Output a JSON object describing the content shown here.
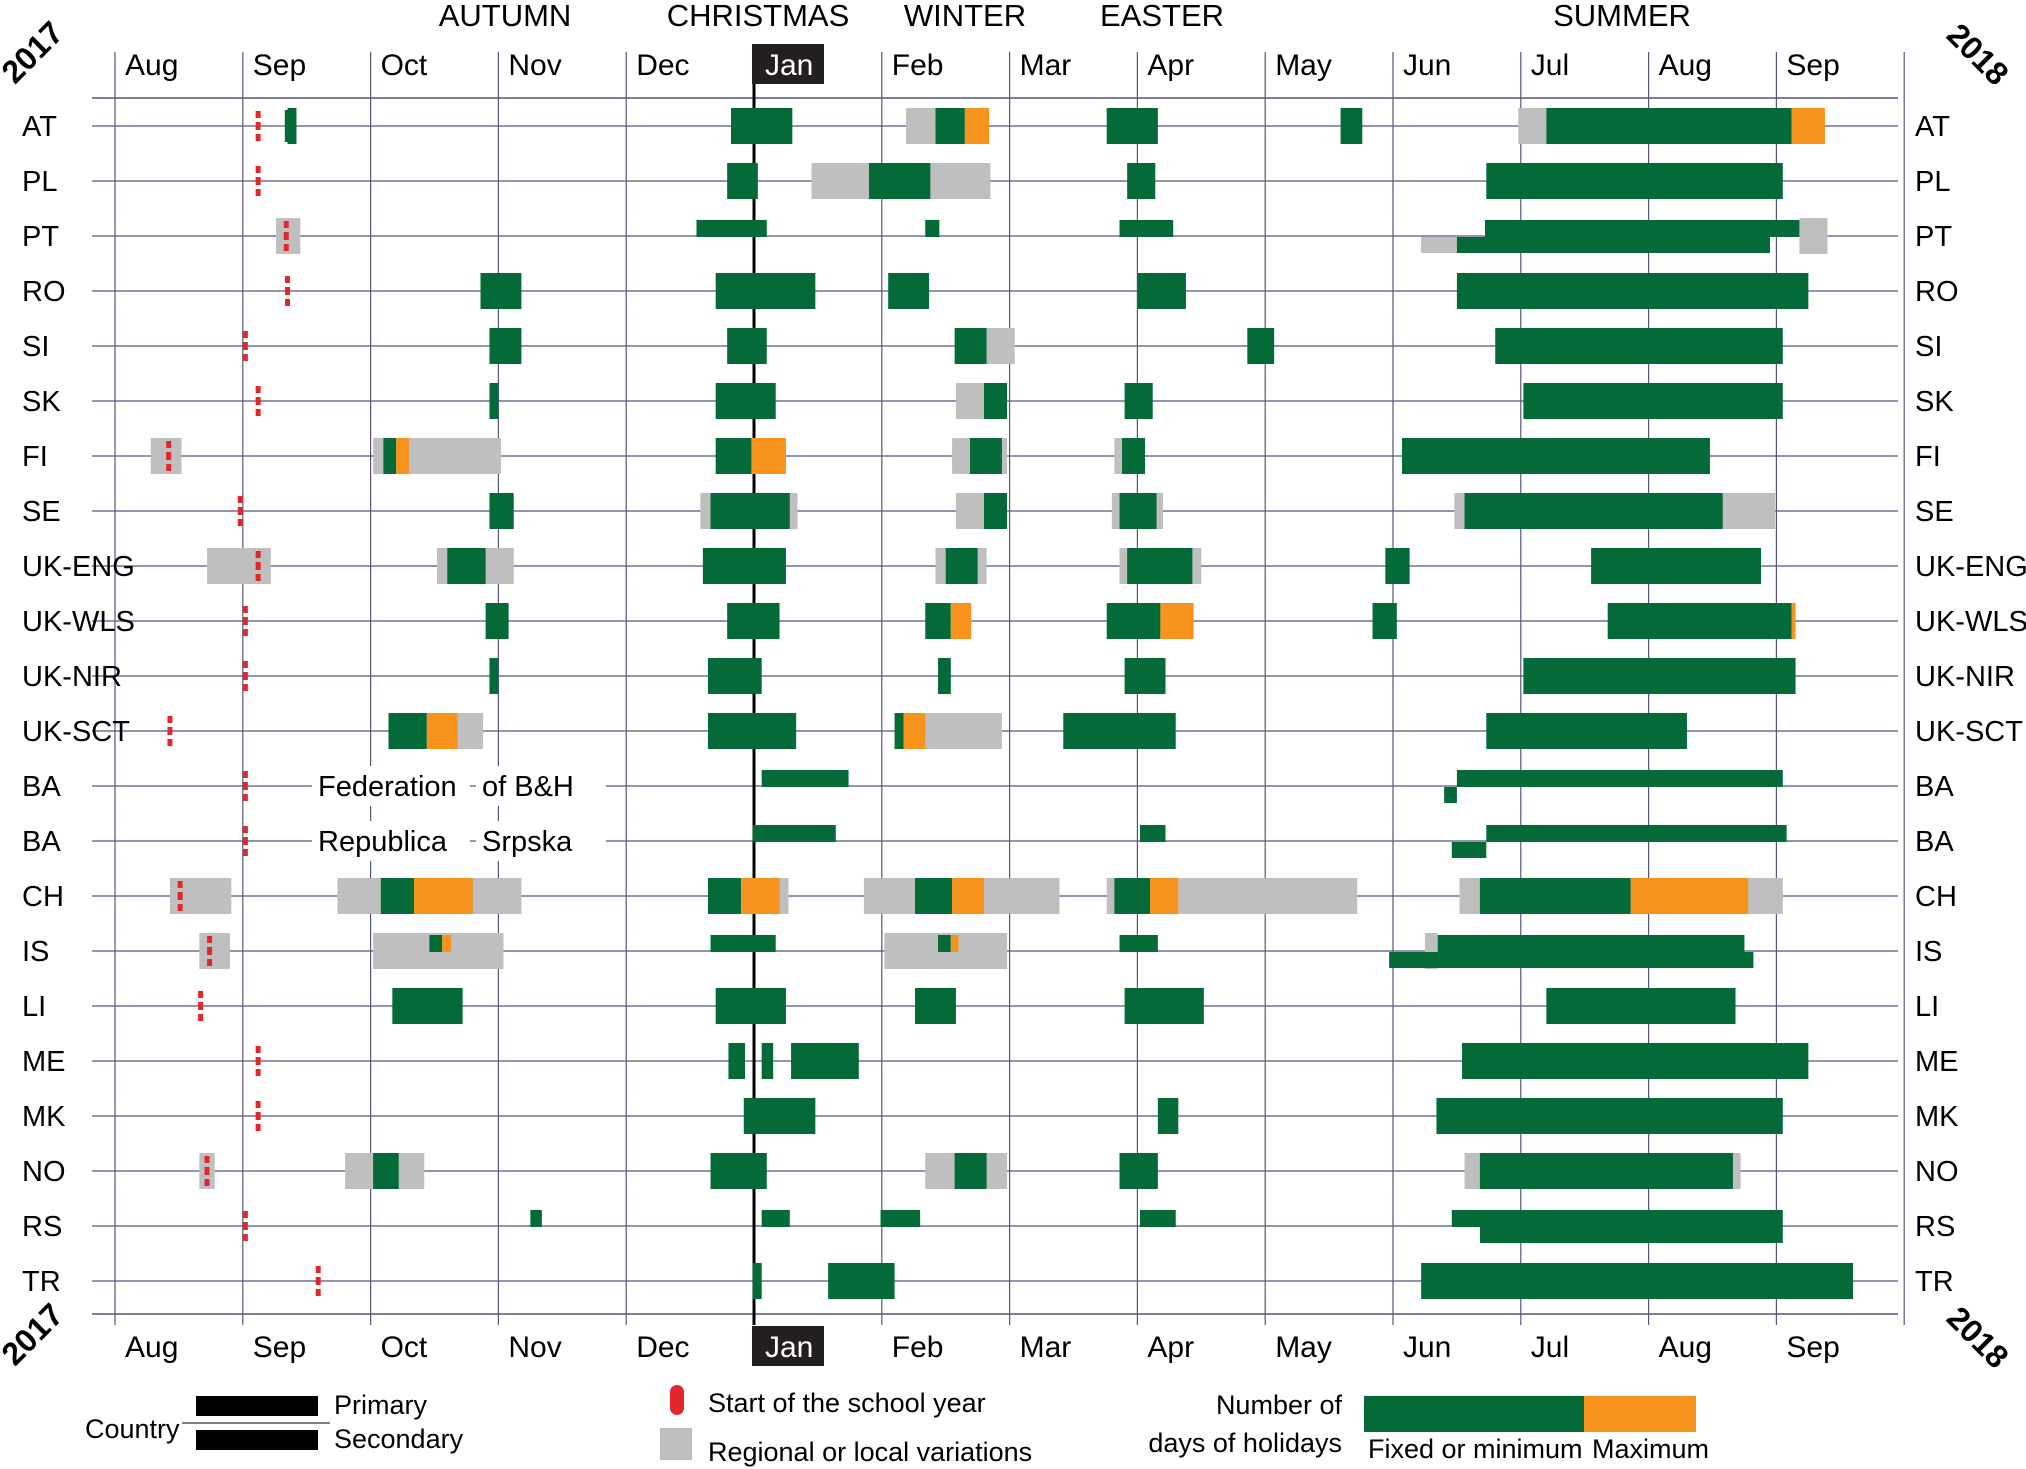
{
  "chart_data": {
    "type": "gantt",
    "title": "",
    "year_start": "2017",
    "year_end": "2018",
    "seasons": [
      "AUTUMN",
      "CHRISTMAS",
      "WINTER",
      "EASTER",
      "SUMMER"
    ],
    "months": [
      "Aug",
      "Sep",
      "Oct",
      "Nov",
      "Dec",
      "Jan",
      "Feb",
      "Mar",
      "Apr",
      "May",
      "Jun",
      "Jul",
      "Aug",
      "Sep"
    ],
    "highlighted_month": "Jan",
    "x_axis": "months from 1 Aug 2017 (Aug=0 ... Sep 2018=13)",
    "xlim": [
      -0.1,
      13.9
    ],
    "colors": {
      "fixed": "#046A38",
      "maximum": "#F7941D",
      "regional": "#BFBFBF",
      "school_start": "#E3262B",
      "gridline": "#55557A"
    },
    "countries": [
      {
        "code": "AT",
        "start": [
          [
            1.12,
            1
          ],
          [
            1.36,
            2
          ]
        ],
        "grey": [
          [
            6.19,
            6.42,
            0
          ],
          [
            10.98,
            11.2,
            0
          ]
        ],
        "green": [
          [
            4.82,
            5.3,
            0
          ],
          [
            1.35,
            1.42,
            0
          ],
          [
            6.42,
            6.65,
            0
          ],
          [
            7.76,
            8.16,
            0
          ],
          [
            9.59,
            9.76,
            0
          ],
          [
            11.2,
            13.12,
            0
          ]
        ],
        "orange": [
          [
            6.65,
            6.84,
            0
          ],
          [
            13.12,
            13.38,
            0
          ]
        ]
      },
      {
        "code": "PL",
        "start": [
          [
            1.12,
            0
          ]
        ],
        "grey": [
          [
            5.45,
            6.85,
            0
          ]
        ],
        "green": [
          [
            4.79,
            5.03,
            0
          ],
          [
            5.9,
            6.38,
            0
          ],
          [
            7.92,
            8.14,
            0
          ],
          [
            10.73,
            13.05,
            0
          ]
        ],
        "orange": []
      },
      {
        "code": "PT",
        "start": [
          [
            1.34,
            0
          ]
        ],
        "grey": [
          [
            1.26,
            1.45,
            0
          ],
          [
            10.22,
            10.5,
            1
          ],
          [
            13.18,
            13.4,
            0
          ]
        ],
        "green": [
          [
            4.55,
            5.1,
            0
          ],
          [
            6.34,
            6.45,
            0
          ],
          [
            7.86,
            8.28,
            0
          ],
          [
            10.72,
            13.18,
            0
          ],
          [
            10.5,
            12.95,
            1
          ]
        ],
        "orange": []
      },
      {
        "code": "RO",
        "start": [
          [
            1.35,
            0
          ]
        ],
        "grey": [],
        "green": [
          [
            2.86,
            3.18,
            0
          ],
          [
            4.7,
            5.48,
            0
          ],
          [
            6.05,
            6.37,
            0
          ],
          [
            8.0,
            8.38,
            0
          ],
          [
            10.5,
            13.25,
            0
          ]
        ],
        "orange": []
      },
      {
        "code": "SI",
        "start": [
          [
            1.02,
            0
          ]
        ],
        "grey": [
          [
            6.82,
            7.04,
            0
          ]
        ],
        "green": [
          [
            2.93,
            3.18,
            0
          ],
          [
            4.79,
            5.1,
            0
          ],
          [
            6.57,
            6.82,
            0
          ],
          [
            8.86,
            9.07,
            0
          ],
          [
            10.8,
            13.05,
            0
          ]
        ],
        "orange": []
      },
      {
        "code": "SK",
        "start": [
          [
            1.12,
            0
          ]
        ],
        "grey": [
          [
            6.58,
            6.88,
            0
          ]
        ],
        "green": [
          [
            2.93,
            3.0,
            0
          ],
          [
            4.7,
            5.17,
            0
          ],
          [
            6.8,
            6.98,
            0
          ],
          [
            7.9,
            8.12,
            0
          ],
          [
            11.02,
            13.05,
            0
          ]
        ],
        "orange": []
      },
      {
        "code": "FI",
        "start": [
          [
            0.42,
            0
          ]
        ],
        "grey": [
          [
            0.28,
            0.52,
            0
          ],
          [
            2.02,
            3.02,
            0
          ],
          [
            6.55,
            6.98,
            0
          ],
          [
            7.82,
            7.96,
            0
          ]
        ],
        "green": [
          [
            2.1,
            2.2,
            0
          ],
          [
            4.7,
            4.98,
            0
          ],
          [
            6.69,
            6.94,
            0
          ],
          [
            7.88,
            8.06,
            0
          ],
          [
            10.07,
            12.48,
            0
          ]
        ],
        "orange": [
          [
            2.2,
            2.3,
            0
          ],
          [
            4.98,
            5.25,
            0
          ]
        ]
      },
      {
        "code": "SE",
        "start": [
          [
            0.98,
            0
          ]
        ],
        "grey": [
          [
            4.58,
            5.34,
            0
          ],
          [
            6.58,
            6.98,
            0
          ],
          [
            7.8,
            8.2,
            0
          ],
          [
            10.48,
            12.99,
            0
          ]
        ],
        "green": [
          [
            4.66,
            5.28,
            0
          ],
          [
            2.93,
            3.12,
            0
          ],
          [
            6.8,
            6.98,
            0
          ],
          [
            7.86,
            8.15,
            0
          ],
          [
            10.56,
            12.58,
            0
          ]
        ],
        "orange": []
      },
      {
        "code": "UK-ENG",
        "start": [
          [
            1.12,
            0
          ]
        ],
        "grey": [
          [
            0.72,
            1.22,
            0
          ],
          [
            2.52,
            3.12,
            0
          ],
          [
            6.42,
            6.82,
            0
          ],
          [
            7.86,
            8.5,
            0
          ]
        ],
        "green": [
          [
            4.6,
            5.25,
            0
          ],
          [
            2.6,
            2.9,
            0
          ],
          [
            6.5,
            6.75,
            0
          ],
          [
            7.92,
            8.43,
            0
          ],
          [
            9.94,
            10.13,
            0
          ],
          [
            11.55,
            12.88,
            0
          ]
        ],
        "orange": []
      },
      {
        "code": "UK-WLS",
        "start": [
          [
            1.02,
            0
          ]
        ],
        "grey": [],
        "green": [
          [
            2.9,
            3.08,
            0
          ],
          [
            4.79,
            5.2,
            0
          ],
          [
            6.34,
            6.54,
            0
          ],
          [
            7.76,
            8.18,
            0
          ],
          [
            9.84,
            10.03,
            0
          ],
          [
            11.68,
            13.12,
            0
          ]
        ],
        "orange": [
          [
            6.54,
            6.7,
            0
          ],
          [
            8.18,
            8.44,
            0
          ],
          [
            13.12,
            13.15,
            0
          ]
        ]
      },
      {
        "code": "UK-NIR",
        "start": [
          [
            1.02,
            0
          ]
        ],
        "grey": [],
        "green": [
          [
            2.93,
            3.0,
            0
          ],
          [
            4.64,
            5.06,
            0
          ],
          [
            6.44,
            6.54,
            0
          ],
          [
            7.9,
            8.22,
            0
          ],
          [
            11.02,
            13.15,
            0
          ]
        ],
        "orange": []
      },
      {
        "code": "UK-SCT",
        "start": [
          [
            0.43,
            0
          ]
        ],
        "grey": [
          [
            2.3,
            2.88,
            0
          ],
          [
            6.1,
            6.94,
            0
          ]
        ],
        "green": [
          [
            2.14,
            2.44,
            0
          ],
          [
            4.64,
            5.33,
            0
          ],
          [
            6.1,
            6.17,
            0
          ],
          [
            7.42,
            8.3,
            0
          ],
          [
            10.73,
            12.3,
            0
          ]
        ],
        "orange": [
          [
            2.44,
            2.68,
            0
          ],
          [
            6.17,
            6.34,
            0
          ]
        ]
      },
      {
        "code": "BA",
        "note": "Federation",
        "note2": "of B&H",
        "start": [
          [
            1.02,
            0
          ]
        ],
        "grey": [],
        "green": [
          [
            5.06,
            5.74,
            0
          ],
          [
            10.5,
            13.05,
            0
          ],
          [
            10.4,
            10.5,
            1
          ]
        ],
        "orange": []
      },
      {
        "code": "BA",
        "note": "Republica",
        "note2": "Srpska",
        "start": [
          [
            1.02,
            0
          ]
        ],
        "grey": [],
        "green": [
          [
            4.99,
            5.64,
            0
          ],
          [
            8.02,
            8.22,
            0
          ],
          [
            10.73,
            13.08,
            0
          ],
          [
            10.46,
            10.73,
            1
          ]
        ],
        "orange": []
      },
      {
        "code": "CH",
        "start": [
          [
            0.51,
            0
          ]
        ],
        "grey": [
          [
            0.43,
            0.91,
            0
          ],
          [
            1.74,
            3.18,
            0
          ],
          [
            4.92,
            5.27,
            0
          ],
          [
            5.86,
            7.39,
            0
          ],
          [
            7.76,
            9.72,
            0
          ],
          [
            10.52,
            13.05,
            0
          ]
        ],
        "green": [
          [
            4.64,
            4.9,
            0
          ],
          [
            2.08,
            2.34,
            0
          ],
          [
            6.26,
            6.55,
            0
          ],
          [
            7.82,
            8.1,
            0
          ],
          [
            10.68,
            11.86,
            0
          ]
        ],
        "orange": [
          [
            4.9,
            5.2,
            0
          ],
          [
            2.34,
            2.8,
            0
          ],
          [
            6.55,
            6.8,
            0
          ],
          [
            8.1,
            8.32,
            0
          ],
          [
            11.86,
            12.78,
            0
          ]
        ]
      },
      {
        "code": "IS",
        "start": [
          [
            0.74,
            0
          ]
        ],
        "grey": [
          [
            0.66,
            0.9,
            0
          ],
          [
            2.02,
            3.04,
            0
          ],
          [
            6.02,
            6.98,
            0
          ],
          [
            10.25,
            10.35,
            0
          ]
        ],
        "green": [
          [
            4.66,
            5.17,
            0
          ],
          [
            2.46,
            2.56,
            0
          ],
          [
            6.44,
            6.54,
            0
          ],
          [
            7.86,
            8.16,
            0
          ],
          [
            10.35,
            12.75,
            0
          ],
          [
            9.97,
            12.82,
            1
          ]
        ],
        "orange": [
          [
            2.56,
            2.63,
            0
          ],
          [
            6.54,
            6.6,
            0
          ]
        ]
      },
      {
        "code": "LI",
        "start": [
          [
            0.67,
            0
          ]
        ],
        "grey": [],
        "green": [
          [
            2.17,
            2.72,
            0
          ],
          [
            4.7,
            5.25,
            0
          ],
          [
            6.26,
            6.58,
            0
          ],
          [
            7.9,
            8.52,
            0
          ],
          [
            11.2,
            12.68,
            0
          ]
        ],
        "orange": []
      },
      {
        "code": "ME",
        "start": [
          [
            1.12,
            0
          ]
        ],
        "grey": [],
        "green": [
          [
            4.8,
            4.93,
            0
          ],
          [
            5.06,
            5.15,
            0
          ],
          [
            5.29,
            5.82,
            0
          ],
          [
            10.54,
            13.25,
            0
          ]
        ],
        "orange": []
      },
      {
        "code": "MK",
        "start": [
          [
            1.12,
            0
          ]
        ],
        "grey": [],
        "green": [
          [
            4.92,
            5.48,
            0
          ],
          [
            8.16,
            8.32,
            0
          ],
          [
            10.34,
            13.05,
            0
          ]
        ],
        "orange": []
      },
      {
        "code": "NO",
        "start": [
          [
            0.72,
            0
          ]
        ],
        "grey": [
          [
            0.66,
            0.78,
            0
          ],
          [
            1.8,
            2.42,
            0
          ],
          [
            6.34,
            6.98,
            0
          ],
          [
            10.56,
            12.72,
            0
          ]
        ],
        "green": [
          [
            4.66,
            5.1,
            0
          ],
          [
            2.02,
            2.22,
            0
          ],
          [
            6.57,
            6.82,
            0
          ],
          [
            7.86,
            8.16,
            0
          ],
          [
            10.68,
            12.66,
            0
          ]
        ],
        "orange": []
      },
      {
        "code": "RS",
        "start": [
          [
            1.02,
            0
          ]
        ],
        "grey": [],
        "green": [
          [
            3.25,
            3.34,
            0
          ],
          [
            5.06,
            5.28,
            0
          ],
          [
            5.99,
            6.3,
            0
          ],
          [
            8.02,
            8.3,
            0
          ],
          [
            10.46,
            13.05,
            0
          ],
          [
            10.68,
            13.05,
            1
          ]
        ],
        "orange": []
      },
      {
        "code": "TR",
        "start": [
          [
            1.59,
            0
          ]
        ],
        "grey": [],
        "green": [
          [
            4.99,
            5.06,
            0
          ],
          [
            5.58,
            6.1,
            0
          ],
          [
            10.22,
            13.6,
            0
          ]
        ],
        "orange": []
      }
    ],
    "legend": {
      "country": "Country",
      "primary": "Primary",
      "secondary": "Secondary",
      "school_start": "Start of the school year",
      "regional": "Regional or local variations",
      "days_title_1": "Number of",
      "days_title_2": "days of holidays",
      "fixed": "Fixed or minimum",
      "maximum": "Maximum"
    }
  }
}
